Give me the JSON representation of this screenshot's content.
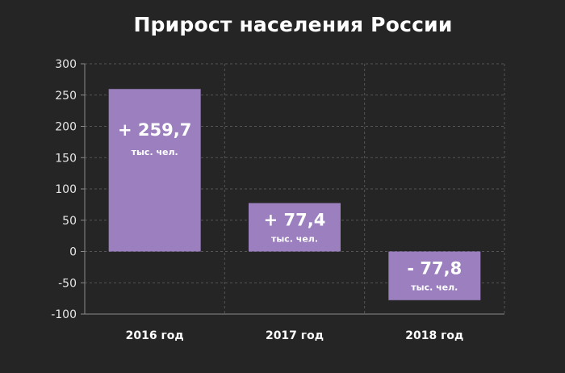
{
  "chart_data": {
    "type": "bar",
    "title": "Прирост населения России",
    "categories": [
      "2016 год",
      "2017 год",
      "2018 год"
    ],
    "values": [
      259.7,
      77.4,
      -77.8
    ],
    "data_labels": [
      "+ 259,7",
      "+ 77,4",
      "- 77,8"
    ],
    "unit_label": "тыс. чел.",
    "ylim": [
      -100,
      300
    ],
    "yticks": [
      300,
      250,
      200,
      150,
      100,
      50,
      0,
      -50,
      -100
    ],
    "grid": true,
    "xlabel": "",
    "ylabel": "",
    "colors": {
      "background": "#252525",
      "bar": "#9b7fbe",
      "grid": "#555555",
      "axis": "#8a8a8a",
      "text": "#ffffff"
    }
  }
}
